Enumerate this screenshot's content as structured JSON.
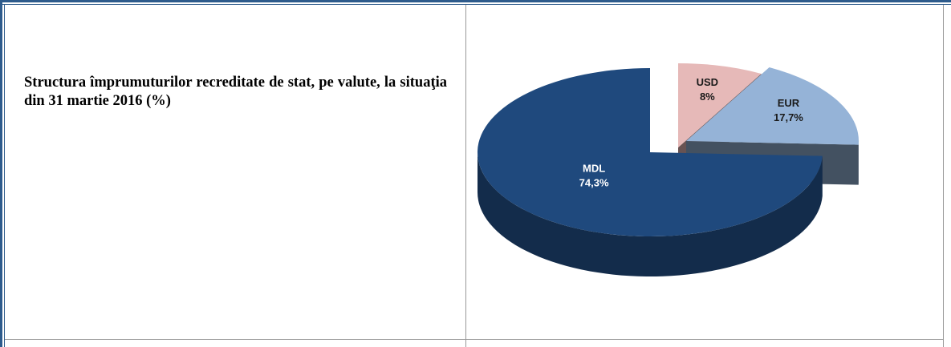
{
  "chart_data": {
    "type": "pie",
    "title": "Structura împrumuturilor recreditate de stat, pe valute, la situaţia din 31 martie 2016 (%)",
    "categories": [
      "USD",
      "EUR",
      "MDL"
    ],
    "values": [
      8,
      17.7,
      74.3
    ],
    "value_labels": [
      "8%",
      "17,7%",
      "74,3%"
    ],
    "colors": [
      "#e6b9b8",
      "#95b3d7",
      "#1f497d"
    ]
  }
}
